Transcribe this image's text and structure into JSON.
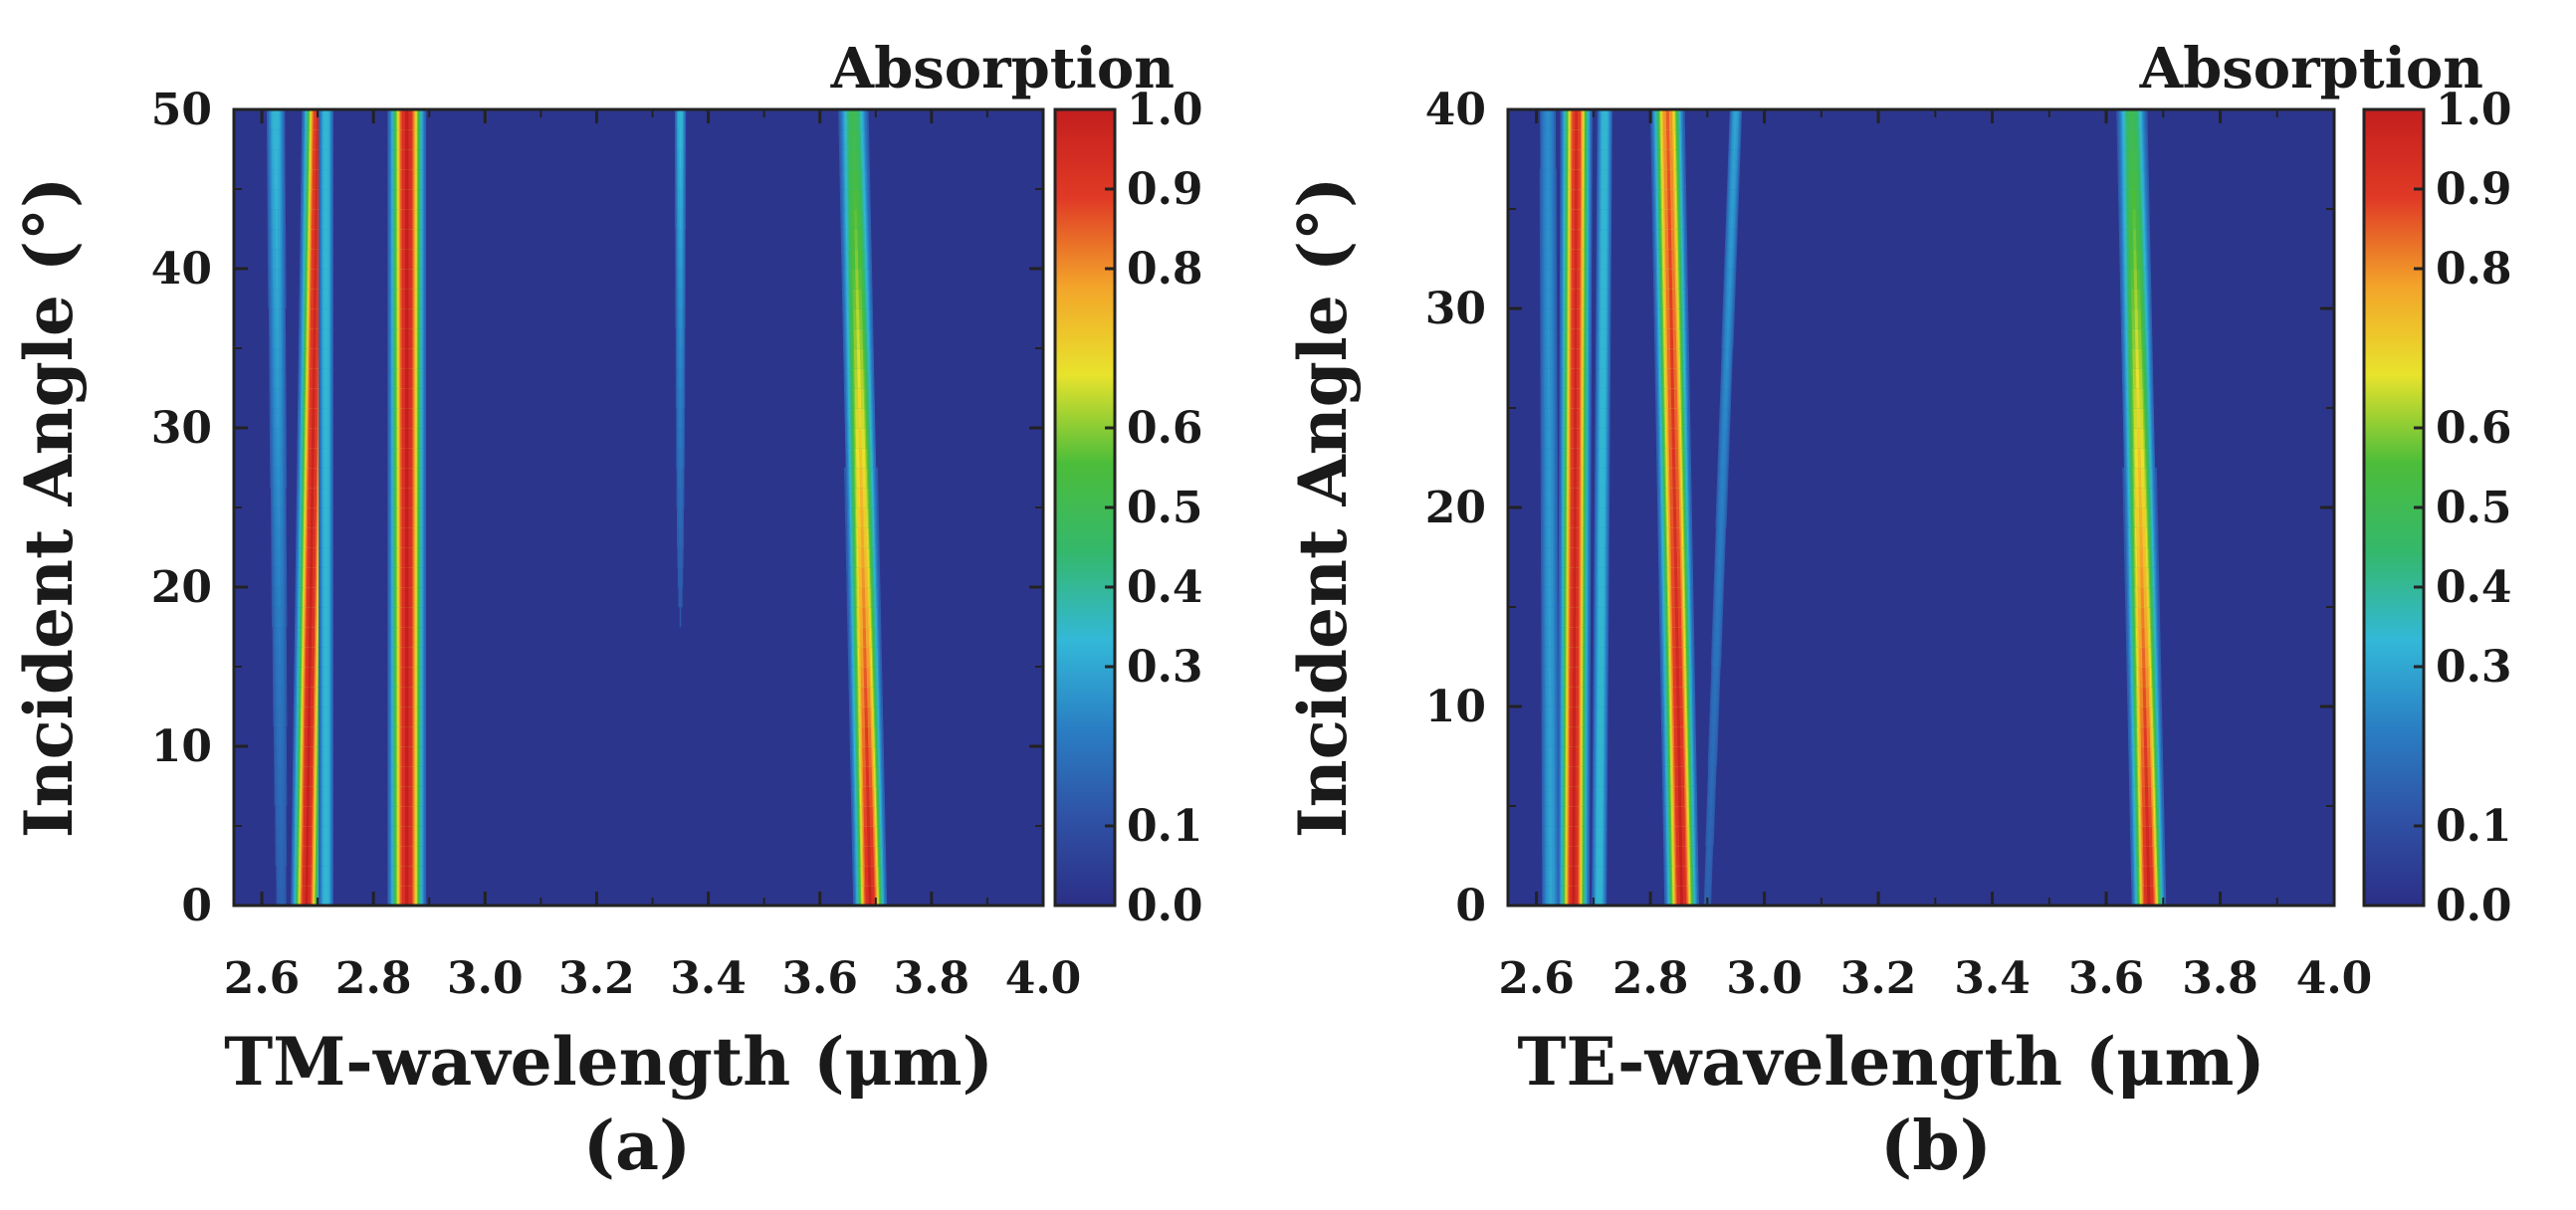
{
  "colorbar": {
    "title": "Absorption",
    "ticks": [
      "0.0",
      "0.1",
      "0.3",
      "0.4",
      "0.5",
      "0.6",
      "0.8",
      "0.9",
      "1.0"
    ],
    "tick_values": [
      0.0,
      0.1,
      0.3,
      0.4,
      0.5,
      0.6,
      0.8,
      0.9,
      1.0
    ],
    "colormap": [
      "#2b2f86",
      "#2f52a6",
      "#2a7fc4",
      "#33b8d8",
      "#34b86b",
      "#4cbd3a",
      "#e8e32c",
      "#f3a42a",
      "#e03a26",
      "#c41e1e"
    ]
  },
  "chart_data": [
    {
      "type": "heatmap",
      "panel_label": "(a)",
      "xlabel": "TM-wavelength  (μm)",
      "ylabel": "Incident Angle  (°)",
      "xlim": [
        2.55,
        4.0
      ],
      "ylim": [
        0,
        50
      ],
      "xticks": [
        "2.6",
        "2.8",
        "3.0",
        "3.2",
        "3.4",
        "3.6",
        "3.8",
        "4.0"
      ],
      "xtick_values": [
        2.6,
        2.8,
        3.0,
        3.2,
        3.4,
        3.6,
        3.8,
        4.0
      ],
      "yticks": [
        "0",
        "10",
        "20",
        "30",
        "40",
        "50"
      ],
      "ytick_values": [
        0,
        10,
        20,
        30,
        40,
        50
      ],
      "background_value": 0.02,
      "ridges": [
        {
          "x_at_0": 2.68,
          "x_at_max": 2.7,
          "width": 0.013,
          "peak_at_0": 1.0,
          "peak_at_max": 0.95
        },
        {
          "x_at_0": 2.635,
          "x_at_max": 2.625,
          "width": 0.01,
          "peak_at_0": 0.15,
          "peak_at_max": 0.35
        },
        {
          "x_at_0": 2.715,
          "x_at_max": 2.715,
          "width": 0.008,
          "peak_at_0": 0.35,
          "peak_at_max": 0.35
        },
        {
          "x_at_0": 2.86,
          "x_at_max": 2.86,
          "width": 0.016,
          "peak_at_0": 1.0,
          "peak_at_max": 1.0
        },
        {
          "x_at_0": 3.35,
          "x_at_max": 3.35,
          "width": 0.006,
          "peak_at_0": 0.0,
          "peak_at_max": 0.35
        },
        {
          "x_at_0": 3.69,
          "x_at_max": 3.66,
          "width": 0.014,
          "peak_at_0": 1.0,
          "peak_at_max": 0.5
        }
      ]
    },
    {
      "type": "heatmap",
      "panel_label": "(b)",
      "xlabel": "TE-wavelength  (μm)",
      "ylabel": "Incident Angle  (°)",
      "xlim": [
        2.55,
        4.0
      ],
      "ylim": [
        0,
        40
      ],
      "xticks": [
        "2.6",
        "2.8",
        "3.0",
        "3.2",
        "3.4",
        "3.6",
        "3.8",
        "4.0"
      ],
      "xtick_values": [
        2.6,
        2.8,
        3.0,
        3.2,
        3.4,
        3.6,
        3.8,
        4.0
      ],
      "yticks": [
        "0",
        "10",
        "20",
        "30",
        "40"
      ],
      "ytick_values": [
        0,
        10,
        20,
        30,
        40
      ],
      "background_value": 0.02,
      "ridges": [
        {
          "x_at_0": 2.665,
          "x_at_max": 2.67,
          "width": 0.013,
          "peak_at_0": 1.0,
          "peak_at_max": 0.95
        },
        {
          "x_at_0": 2.625,
          "x_at_max": 2.62,
          "width": 0.01,
          "peak_at_0": 0.3,
          "peak_at_max": 0.25
        },
        {
          "x_at_0": 2.71,
          "x_at_max": 2.72,
          "width": 0.008,
          "peak_at_0": 0.35,
          "peak_at_max": 0.35
        },
        {
          "x_at_0": 2.855,
          "x_at_max": 2.83,
          "width": 0.014,
          "peak_at_0": 1.0,
          "peak_at_max": 0.85
        },
        {
          "x_at_0": 2.9,
          "x_at_max": 2.95,
          "width": 0.007,
          "peak_at_0": 0.15,
          "peak_at_max": 0.3
        },
        {
          "x_at_0": 3.675,
          "x_at_max": 3.645,
          "width": 0.014,
          "peak_at_0": 1.0,
          "peak_at_max": 0.5
        }
      ]
    }
  ]
}
